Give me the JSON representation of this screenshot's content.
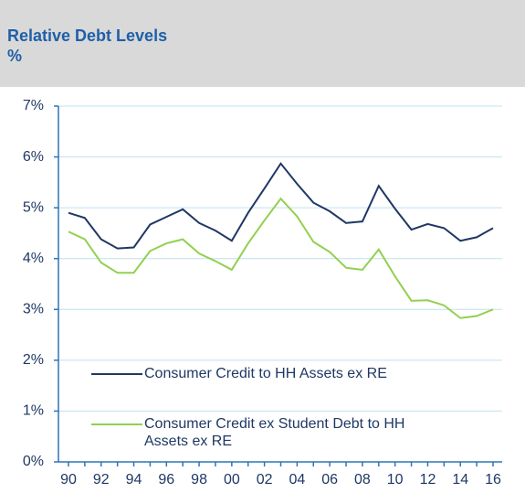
{
  "chart_data": {
    "type": "line",
    "title": "Relative Debt Levels",
    "subtitle": "%",
    "categories": [
      "90",
      null,
      "92",
      null,
      "94",
      null,
      "96",
      null,
      "98",
      null,
      "00",
      null,
      "02",
      null,
      "04",
      null,
      "06",
      null,
      "08",
      null,
      "10",
      null,
      "12",
      null,
      "14",
      null,
      "16"
    ],
    "series": [
      {
        "name": "Consumer Credit to HH Assets ex RE",
        "color": "#1f3864",
        "values": [
          4.9,
          4.8,
          4.38,
          4.2,
          4.22,
          4.67,
          4.82,
          4.97,
          4.7,
          4.55,
          4.35,
          4.9,
          5.38,
          5.87,
          5.47,
          5.1,
          4.93,
          4.7,
          4.73,
          5.43,
          4.98,
          4.57,
          4.68,
          4.6,
          4.35,
          4.42,
          4.6
        ]
      },
      {
        "name": "Consumer Credit ex Student Debt to HH Assets ex RE",
        "color": "#92d050",
        "values": [
          4.53,
          4.38,
          3.92,
          3.72,
          3.72,
          4.15,
          4.3,
          4.38,
          4.1,
          3.95,
          3.78,
          4.3,
          4.75,
          5.18,
          4.83,
          4.33,
          4.13,
          3.82,
          3.78,
          4.18,
          3.65,
          3.17,
          3.18,
          3.08,
          2.83,
          2.87,
          3.0
        ]
      }
    ],
    "ylim": [
      0,
      7
    ],
    "yticks": [
      {
        "value": 0,
        "label": "0%"
      },
      {
        "value": 1,
        "label": "1%"
      },
      {
        "value": 2,
        "label": "2%"
      },
      {
        "value": 3,
        "label": "3%"
      },
      {
        "value": 4,
        "label": "4%"
      },
      {
        "value": 5,
        "label": "5%"
      },
      {
        "value": 6,
        "label": "6%"
      },
      {
        "value": 7,
        "label": "7%"
      }
    ],
    "grid": true
  }
}
